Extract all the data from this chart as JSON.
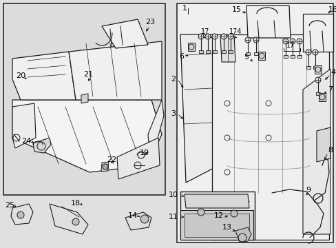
{
  "fig_width": 4.89,
  "fig_height": 3.6,
  "dpi": 100,
  "bg": "#e0e0e0",
  "lc": "#1a1a1a",
  "panel_bg": "#dcdcdc",
  "white": "#f8f8f8",
  "label_fs": 7,
  "label_fs_sm": 6
}
